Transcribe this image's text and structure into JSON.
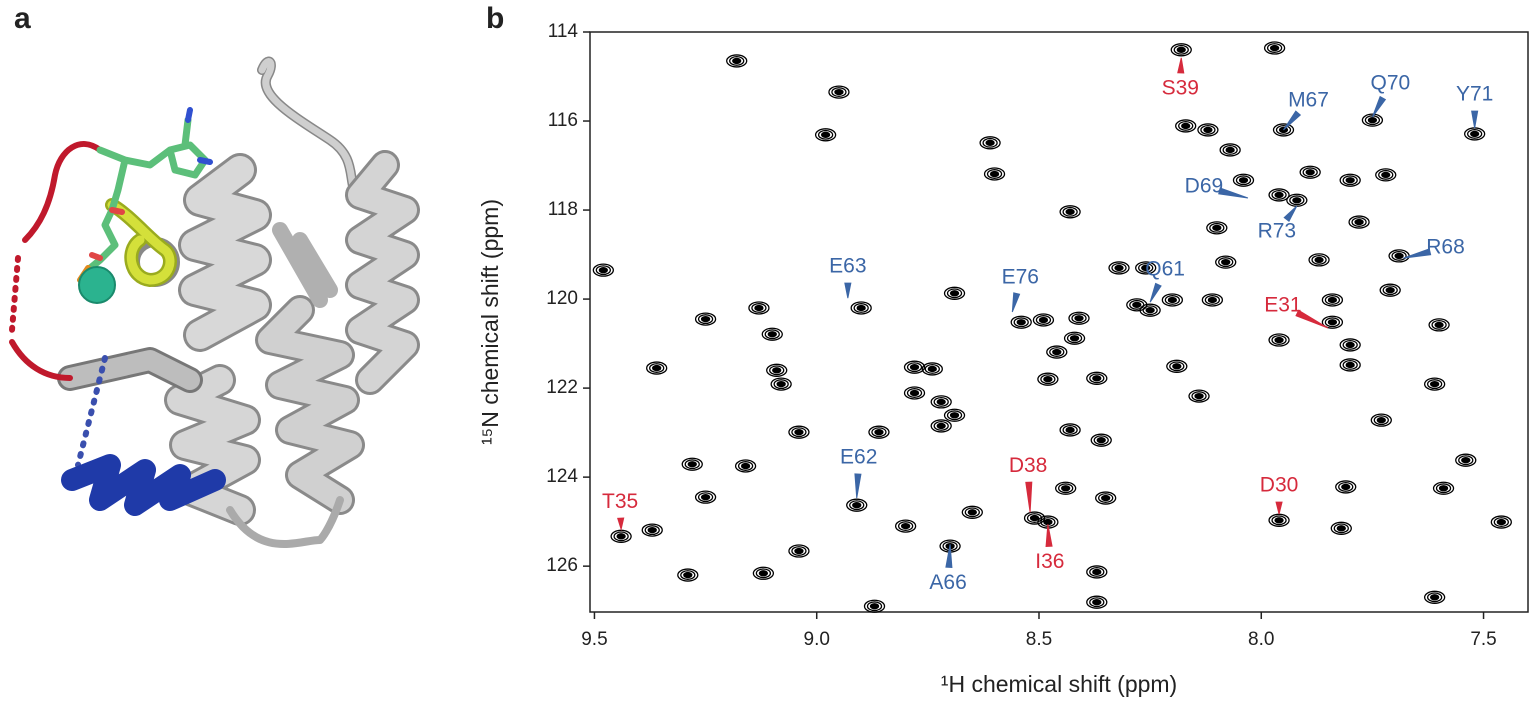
{
  "figure": {
    "panel_a_label": "a",
    "panel_b_label": "b"
  },
  "chart_data": {
    "type": "scatter",
    "x_label": "¹H chemical shift (ppm)",
    "y_label": "¹⁵N chemical shift (ppm)",
    "xlim": [
      9.51,
      7.4
    ],
    "ylim": [
      114,
      127.03
    ],
    "xticks": [
      9.5,
      {
        "value": 9,
        "label": "9.0"
      },
      8.5,
      {
        "value": 8,
        "label": "8.0"
      },
      7.5
    ],
    "yticks": [
      114,
      116,
      118,
      120,
      122,
      124,
      126
    ],
    "color": "#000000",
    "x": [
      9.48,
      9.44,
      9.37,
      9.36,
      9.29,
      9.28,
      9.25,
      9.25,
      9.18,
      9.16,
      9.13,
      9.12,
      9.1,
      9.09,
      9.08,
      9.04,
      9.04,
      8.98,
      8.95,
      8.9,
      8.91,
      8.87,
      8.86,
      8.8,
      8.78,
      8.74,
      8.78,
      8.72,
      8.72,
      8.7,
      8.69,
      8.69,
      8.61,
      8.65,
      8.6,
      8.54,
      8.49,
      8.51,
      8.48,
      8.48,
      8.46,
      8.44,
      8.43,
      8.43,
      8.42,
      8.41,
      8.37,
      8.37,
      8.37,
      8.36,
      8.35,
      8.32,
      8.28,
      8.25,
      8.26,
      8.2,
      8.19,
      8.18,
      8.17,
      8.14,
      8.12,
      8.1,
      8.11,
      8.08,
      8.07,
      8.04,
      7.97,
      7.96,
      7.96,
      7.95,
      7.96,
      7.92,
      7.89,
      7.87,
      7.84,
      7.84,
      7.82,
      7.81,
      7.8,
      7.8,
      7.8,
      7.72,
      7.78,
      7.75,
      7.73,
      7.71,
      7.69,
      7.61,
      7.6,
      7.54,
      7.59,
      7.52,
      7.46,
      7.61
    ],
    "y": [
      119.35,
      125.33,
      125.19,
      121.55,
      126.2,
      123.71,
      124.45,
      120.45,
      114.65,
      123.75,
      120.2,
      126.16,
      120.79,
      121.6,
      121.91,
      122.99,
      125.66,
      116.31,
      115.35,
      120.2,
      124.63,
      126.9,
      122.99,
      125.1,
      121.53,
      121.57,
      122.11,
      122.31,
      122.85,
      125.55,
      119.87,
      122.61,
      116.49,
      124.79,
      117.19,
      120.52,
      120.47,
      124.92,
      125.01,
      121.8,
      121.19,
      124.25,
      118.04,
      122.94,
      120.88,
      120.43,
      121.78,
      126.81,
      126.13,
      123.17,
      124.47,
      119.3,
      120.13,
      120.25,
      119.3,
      120.02,
      121.51,
      114.4,
      116.11,
      122.18,
      116.2,
      118.4,
      120.02,
      119.17,
      116.65,
      117.33,
      114.36,
      120.92,
      124.97,
      116.2,
      117.66,
      117.78,
      117.15,
      119.12,
      120.02,
      120.52,
      125.15,
      124.22,
      121.03,
      121.48,
      117.33,
      117.21,
      118.27,
      115.98,
      122.72,
      119.8,
      119.03,
      121.91,
      120.58,
      123.62,
      124.25,
      116.29,
      125.01,
      126.7
    ],
    "annotations": [
      {
        "text": "S39",
        "x": 8.18,
        "y": 114.58,
        "color": "#d62a3c"
      },
      {
        "text": "E31",
        "x": 7.85,
        "y": 120.65,
        "color": "#d62a3c"
      },
      {
        "text": "D38",
        "x": 8.52,
        "y": 124.79,
        "color": "#d62a3c"
      },
      {
        "text": "I36",
        "x": 8.48,
        "y": 125.06,
        "color": "#d62a3c"
      },
      {
        "text": "D30",
        "x": 7.96,
        "y": 124.83,
        "color": "#d62a3c"
      },
      {
        "text": "T35",
        "x": 9.44,
        "y": 125.17,
        "color": "#d62a3c"
      },
      {
        "text": "E63",
        "x": 8.93,
        "y": 119.98,
        "color": "#3b66a6"
      },
      {
        "text": "E62",
        "x": 8.91,
        "y": 124.47,
        "color": "#3b66a6"
      },
      {
        "text": "A66",
        "x": 8.7,
        "y": 125.51,
        "color": "#3b66a6"
      },
      {
        "text": "E76",
        "x": 8.56,
        "y": 120.29,
        "color": "#3b66a6"
      },
      {
        "text": "Q61",
        "x": 8.25,
        "y": 120.07,
        "color": "#3b66a6"
      },
      {
        "text": "M67",
        "x": 7.95,
        "y": 116.2,
        "color": "#3b66a6"
      },
      {
        "text": "Q70",
        "x": 7.75,
        "y": 115.91,
        "color": "#3b66a6"
      },
      {
        "text": "Y71",
        "x": 7.52,
        "y": 116.16,
        "color": "#3b66a6"
      },
      {
        "text": "D69",
        "x": 8.03,
        "y": 117.73,
        "color": "#3b66a6"
      },
      {
        "text": "R73",
        "x": 7.92,
        "y": 117.91,
        "color": "#3b66a6"
      },
      {
        "text": "R68",
        "x": 7.68,
        "y": 119.08,
        "color": "#3b66a6"
      }
    ]
  }
}
